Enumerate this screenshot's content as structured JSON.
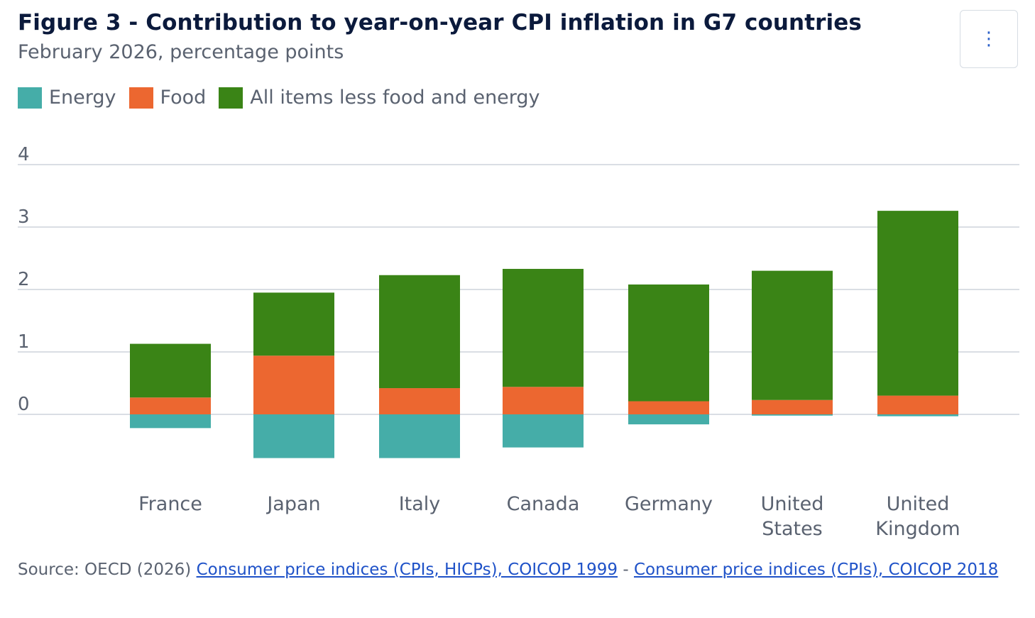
{
  "header": {
    "title": "Figure 3 - Contribution to year-on-year CPI inflation in G7 countries",
    "subtitle": "February 2026, percentage points",
    "menu_icon": "⋮"
  },
  "colors": {
    "energy": "#45ada8",
    "food": "#ec6730",
    "core": "#3a8416",
    "grid": "#cdd3dc",
    "axis_text": "#5a6270",
    "link": "#1f52c8"
  },
  "legend": {
    "energy": "Energy",
    "food": "Food",
    "core": "All items less food and energy"
  },
  "chart_data": {
    "type": "bar",
    "stacked": true,
    "title": "Figure 3 - Contribution to year-on-year CPI inflation in G7 countries",
    "subtitle": "February 2026, percentage points",
    "categories": [
      "France",
      "Japan",
      "Italy",
      "Canada",
      "Germany",
      "United States",
      "United Kingdom"
    ],
    "series": [
      {
        "name": "Energy",
        "values": [
          -0.22,
          -0.7,
          -0.7,
          -0.53,
          -0.16,
          -0.02,
          -0.03
        ]
      },
      {
        "name": "Food",
        "values": [
          0.27,
          0.94,
          0.42,
          0.44,
          0.21,
          0.23,
          0.3
        ]
      },
      {
        "name": "All items less food and energy",
        "values": [
          0.86,
          1.01,
          1.81,
          1.89,
          1.87,
          2.07,
          2.96
        ]
      }
    ],
    "ylim": [
      -1,
      4
    ],
    "yticks": [
      0,
      1,
      2,
      3,
      4
    ],
    "grid": true,
    "legend_position": "top-left"
  },
  "source": {
    "prefix": "Source: OECD (2026) ",
    "link1": "Consumer price indices (CPIs, HICPs), COICOP 1999",
    "separator": " - ",
    "link2": "Consumer price indices (CPIs), COICOP 2018"
  }
}
